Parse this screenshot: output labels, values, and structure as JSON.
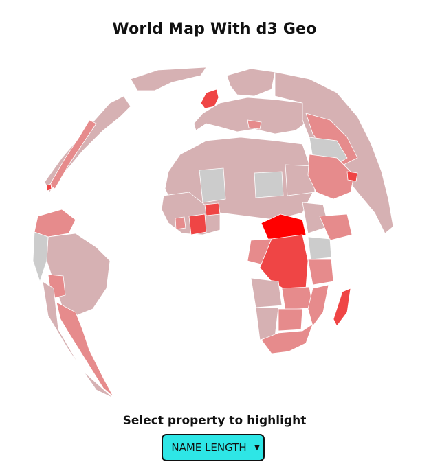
{
  "page": {
    "title": "World Map With d3 Geo"
  },
  "control": {
    "label": "Select property to highlight",
    "selected": "NAME LENGTH",
    "caret_icon": "chevron-down-icon"
  },
  "map": {
    "projection": "orthographic",
    "highlight_property": "NAME LENGTH",
    "colors": {
      "ocean": "#ffffff",
      "no_data": "#cccccc",
      "low": "#d6b1b3",
      "mid": "#e68b8c",
      "high": "#ef4545",
      "max": "#ff0000"
    }
  }
}
